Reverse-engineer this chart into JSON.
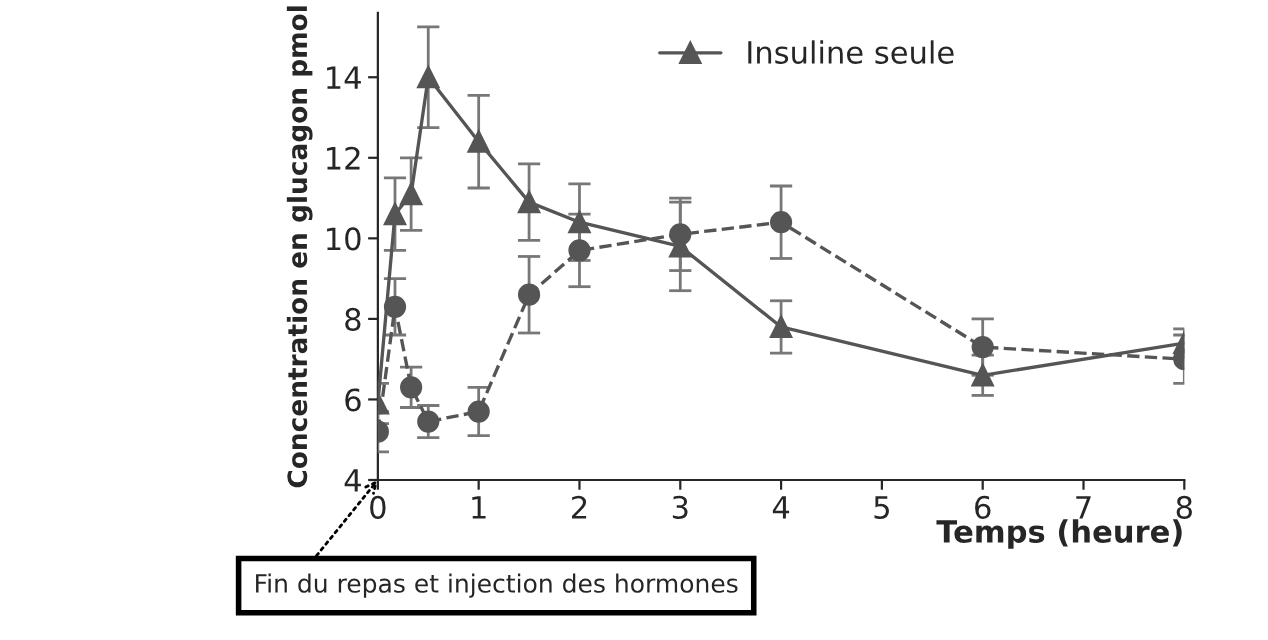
{
  "chart_data": {
    "type": "line",
    "xlabel": "Temps (heure)",
    "ylabel": "Concentration en glucagon pmol",
    "xlim": [
      0,
      8
    ],
    "xticks": [
      0,
      1,
      2,
      3,
      4,
      5,
      6,
      7,
      8
    ],
    "ylim": [
      4,
      15.6
    ],
    "yticks": [
      4,
      6,
      8,
      10,
      12,
      14
    ],
    "grid": false,
    "legend": "top right",
    "series": [
      {
        "name": "Insuline seule",
        "color": "#555555",
        "marker": "triangle",
        "line_style": "solid",
        "x": [
          0,
          0.17,
          0.33,
          0.5,
          1,
          1.5,
          2,
          3,
          4,
          6,
          8
        ],
        "values": [
          5.9,
          10.6,
          11.1,
          14.0,
          12.4,
          10.9,
          10.4,
          9.8,
          7.8,
          6.6,
          7.4
        ],
        "errors": [
          0.5,
          0.9,
          0.9,
          1.25,
          1.15,
          0.95,
          0.95,
          1.1,
          0.65,
          0.5,
          0.35
        ]
      },
      {
        "color": "#555555",
        "marker": "circle",
        "line_style": "dashed",
        "x": [
          0,
          0.17,
          0.33,
          0.5,
          1,
          1.5,
          2,
          3,
          4,
          6,
          8
        ],
        "values": [
          5.2,
          8.3,
          6.3,
          5.45,
          5.7,
          8.6,
          9.7,
          10.1,
          10.4,
          7.3,
          7.0
        ],
        "errors": [
          0.5,
          0.7,
          0.5,
          0.4,
          0.6,
          0.95,
          0.9,
          0.9,
          0.9,
          0.7,
          0.6
        ]
      }
    ],
    "annotations": [
      "Fin du repas et injection des hormones"
    ]
  }
}
